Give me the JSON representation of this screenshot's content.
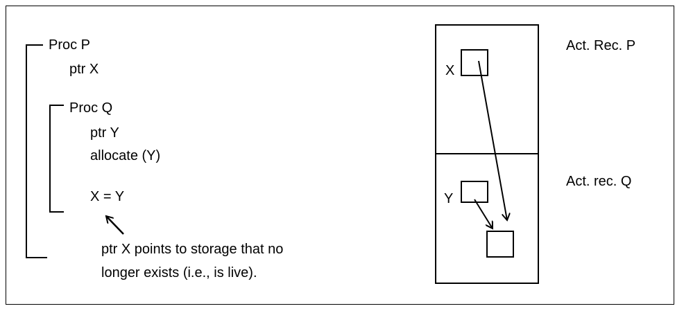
{
  "code": {
    "proc_p": "Proc P",
    "ptr_x": "ptr X",
    "proc_q": "Proc Q",
    "ptr_y": "ptr Y",
    "allocate": "allocate (Y)",
    "assign": "X = Y"
  },
  "note": {
    "line1": "ptr X points to storage that no",
    "line2": "longer exists (i.e., is live)."
  },
  "stack": {
    "label_x": "X",
    "label_y": "Y",
    "act_rec_p": "Act. Rec. P",
    "act_rec_q": "Act. rec. Q"
  },
  "colors": {
    "stroke": "#000000",
    "background": "#ffffff"
  }
}
